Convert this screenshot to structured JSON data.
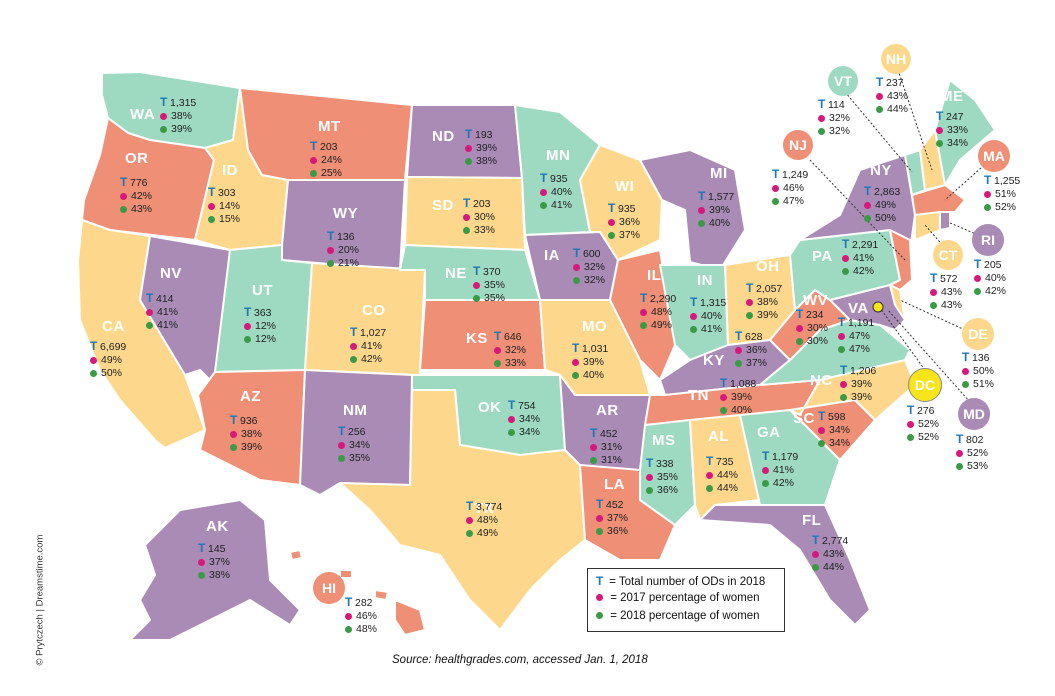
{
  "colors": {
    "purple": "#a98bb6",
    "salmon": "#ee8f76",
    "teal": "#9ed9c1",
    "yellow": "#fdd88c",
    "dc_yellow": "#f7e51a",
    "t_blue": "#1d78b5",
    "pink": "#d6197a",
    "green": "#3a9a45"
  },
  "states": [
    {
      "abbr": "WA",
      "total": "1,315",
      "p2017": "38%",
      "p2018": "39%"
    },
    {
      "abbr": "OR",
      "total": "776",
      "p2017": "42%",
      "p2018": "43%"
    },
    {
      "abbr": "CA",
      "total": "6,699",
      "p2017": "49%",
      "p2018": "50%"
    },
    {
      "abbr": "ID",
      "total": "303",
      "p2017": "14%",
      "p2018": "15%"
    },
    {
      "abbr": "NV",
      "total": "414",
      "p2017": "41%",
      "p2018": "41%"
    },
    {
      "abbr": "MT",
      "total": "203",
      "p2017": "24%",
      "p2018": "25%"
    },
    {
      "abbr": "WY",
      "total": "136",
      "p2017": "20%",
      "p2018": "21%"
    },
    {
      "abbr": "UT",
      "total": "363",
      "p2017": "12%",
      "p2018": "12%"
    },
    {
      "abbr": "AZ",
      "total": "936",
      "p2017": "38%",
      "p2018": "39%"
    },
    {
      "abbr": "CO",
      "total": "1,027",
      "p2017": "41%",
      "p2018": "42%"
    },
    {
      "abbr": "NM",
      "total": "256",
      "p2017": "34%",
      "p2018": "35%"
    },
    {
      "abbr": "ND",
      "total": "193",
      "p2017": "39%",
      "p2018": "38%"
    },
    {
      "abbr": "SD",
      "total": "203",
      "p2017": "30%",
      "p2018": "33%"
    },
    {
      "abbr": "NE",
      "total": "370",
      "p2017": "35%",
      "p2018": "35%"
    },
    {
      "abbr": "KS",
      "total": "646",
      "p2017": "32%",
      "p2018": "33%"
    },
    {
      "abbr": "OK",
      "total": "754",
      "p2017": "34%",
      "p2018": "34%"
    },
    {
      "abbr": "TX",
      "total": "3,774",
      "p2017": "48%",
      "p2018": "49%"
    },
    {
      "abbr": "MN",
      "total": "935",
      "p2017": "40%",
      "p2018": "41%"
    },
    {
      "abbr": "IA",
      "total": "600",
      "p2017": "32%",
      "p2018": "32%"
    },
    {
      "abbr": "MO",
      "total": "1,031",
      "p2017": "39%",
      "p2018": "40%"
    },
    {
      "abbr": "AR",
      "total": "452",
      "p2017": "31%",
      "p2018": "31%"
    },
    {
      "abbr": "LA",
      "total": "452",
      "p2017": "37%",
      "p2018": "36%"
    },
    {
      "abbr": "WI",
      "total": "935",
      "p2017": "36%",
      "p2018": "37%"
    },
    {
      "abbr": "IL",
      "total": "2,290",
      "p2017": "48%",
      "p2018": "49%"
    },
    {
      "abbr": "MI",
      "total": "1,577",
      "p2017": "39%",
      "p2018": "40%"
    },
    {
      "abbr": "IN",
      "total": "1,315",
      "p2017": "40%",
      "p2018": "41%"
    },
    {
      "abbr": "OH",
      "total": "2,057",
      "p2017": "38%",
      "p2018": "39%"
    },
    {
      "abbr": "KY",
      "total": "628",
      "p2017": "36%",
      "p2018": "37%"
    },
    {
      "abbr": "TN",
      "total": "1,088",
      "p2017": "39%",
      "p2018": "40%"
    },
    {
      "abbr": "MS",
      "total": "338",
      "p2017": "35%",
      "p2018": "36%"
    },
    {
      "abbr": "AL",
      "total": "735",
      "p2017": "44%",
      "p2018": "44%"
    },
    {
      "abbr": "GA",
      "total": "1,179",
      "p2017": "41%",
      "p2018": "42%"
    },
    {
      "abbr": "FL",
      "total": "2,774",
      "p2017": "43%",
      "p2018": "44%"
    },
    {
      "abbr": "SC",
      "total": "598",
      "p2017": "34%",
      "p2018": "34%"
    },
    {
      "abbr": "NC",
      "total": "1,206",
      "p2017": "39%",
      "p2018": "39%"
    },
    {
      "abbr": "VA",
      "total": "1,191",
      "p2017": "47%",
      "p2018": "47%"
    },
    {
      "abbr": "WV",
      "total": "234",
      "p2017": "30%",
      "p2018": "30%"
    },
    {
      "abbr": "PA",
      "total": "2,291",
      "p2017": "41%",
      "p2018": "42%"
    },
    {
      "abbr": "NY",
      "total": "2,863",
      "p2017": "49%",
      "p2018": "50%"
    },
    {
      "abbr": "VT",
      "total": "114",
      "p2017": "32%",
      "p2018": "32%"
    },
    {
      "abbr": "NH",
      "total": "237",
      "p2017": "43%",
      "p2018": "44%"
    },
    {
      "abbr": "ME",
      "total": "247",
      "p2017": "33%",
      "p2018": "34%"
    },
    {
      "abbr": "MA",
      "total": "1,255",
      "p2017": "51%",
      "p2018": "52%"
    },
    {
      "abbr": "RI",
      "total": "205",
      "p2017": "40%",
      "p2018": "42%"
    },
    {
      "abbr": "CT",
      "total": "572",
      "p2017": "43%",
      "p2018": "43%"
    },
    {
      "abbr": "NJ",
      "total": "1,249",
      "p2017": "46%",
      "p2018": "47%"
    },
    {
      "abbr": "DE",
      "total": "136",
      "p2017": "50%",
      "p2018": "51%"
    },
    {
      "abbr": "DC",
      "total": "276",
      "p2017": "52%",
      "p2018": "52%"
    },
    {
      "abbr": "MD",
      "total": "802",
      "p2017": "52%",
      "p2018": "53%"
    },
    {
      "abbr": "AK",
      "total": "145",
      "p2017": "37%",
      "p2018": "38%"
    },
    {
      "abbr": "HI",
      "total": "282",
      "p2017": "46%",
      "p2018": "48%"
    }
  ],
  "legend": {
    "t_symbol": "T",
    "t_text": "= Total number of ODs in 2018",
    "pink_text": "= 2017 percentage of women",
    "green_text": "= 2018 percentage of women"
  },
  "source": "Source: healthgrades.com, accessed Jan. 1, 2018",
  "copyright": "© Prytczech | Dreamstime.com"
}
